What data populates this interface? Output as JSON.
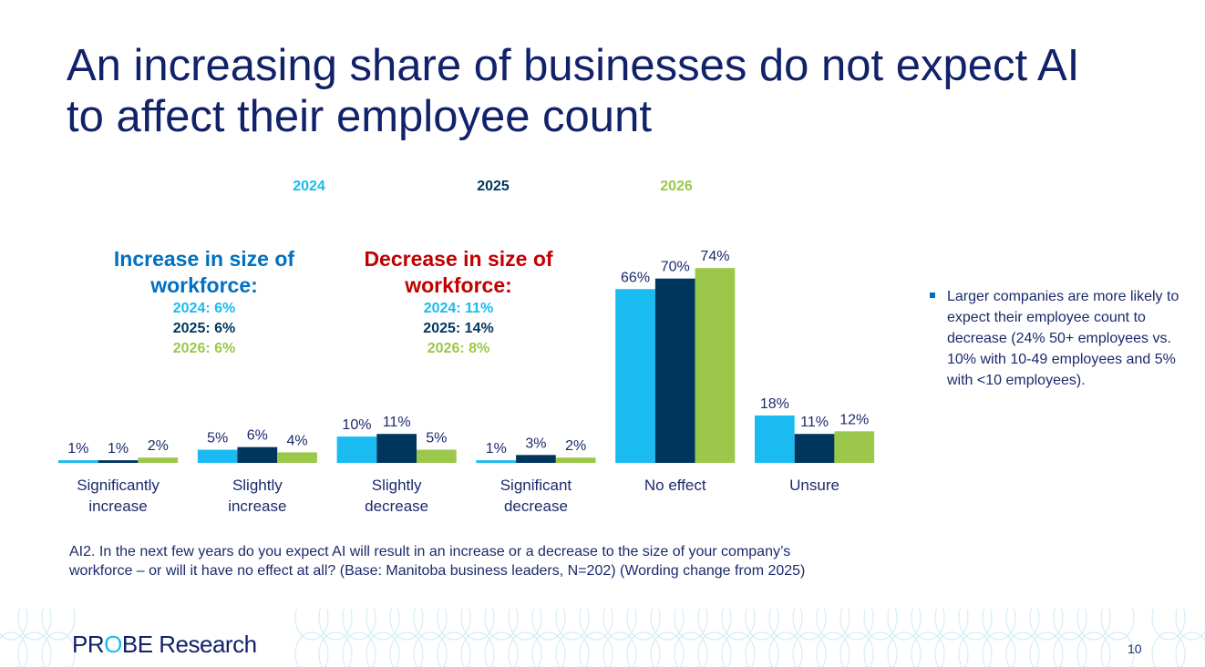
{
  "title": "An increasing share of businesses do not expect AI to affect their employee count",
  "colors": {
    "2024": "#1ABBF0",
    "2025": "#00365E",
    "2026": "#9BC84B",
    "increase": "#0070C0",
    "decrease": "#C00000",
    "text": "#1B2A6B"
  },
  "callouts": {
    "increase": {
      "heading": "Increase in size of workforce:",
      "lines": [
        "2024: 6%",
        "2025: 6%",
        "2026: 6%"
      ]
    },
    "decrease": {
      "heading": "Decrease in size of workforce:",
      "lines": [
        "2024: 11%",
        "2025: 14%",
        "2026: 8%"
      ]
    }
  },
  "chart_data": {
    "type": "bar",
    "categories": [
      "Significantly increase",
      "Slightly increase",
      "Slightly decrease",
      "Significant decrease",
      "No effect",
      "Unsure"
    ],
    "series": [
      {
        "name": "2024",
        "values": [
          1,
          5,
          10,
          1,
          66,
          18
        ]
      },
      {
        "name": "2025",
        "values": [
          1,
          6,
          11,
          3,
          70,
          11
        ]
      },
      {
        "name": "2026",
        "values": [
          2,
          4,
          5,
          2,
          74,
          12
        ]
      }
    ],
    "value_suffix": "%",
    "ylim": [
      0,
      80
    ],
    "grid": false,
    "legend_placement": "top"
  },
  "note": "Larger companies are more likely to expect their employee count to decrease (24% 50+ employees vs. 10% with 10-49 employees and 5% with <10 employees).",
  "question": "AI2. In the next few years do you expect AI will result in an increase or a decrease to the size of your company’s workforce – or will it have no effect at all? (Base: Manitoba business leaders, N=202) (Wording change from 2025)",
  "logo": {
    "part1": "PR",
    "part2": "O",
    "part3": "BE Research"
  },
  "page_number": "10"
}
